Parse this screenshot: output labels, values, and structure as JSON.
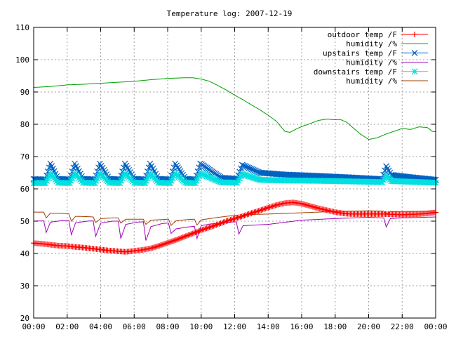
{
  "chart_data": {
    "type": "line",
    "title": "Temperature log: 2007-12-19",
    "xlabel": "",
    "ylabel": "",
    "xlim": [
      0,
      24
    ],
    "ylim": [
      20,
      110
    ],
    "x_ticks": [
      {
        "value": 0,
        "label": "00:00"
      },
      {
        "value": 2,
        "label": "02:00"
      },
      {
        "value": 4,
        "label": "04:00"
      },
      {
        "value": 6,
        "label": "06:00"
      },
      {
        "value": 8,
        "label": "08:00"
      },
      {
        "value": 10,
        "label": "10:00"
      },
      {
        "value": 12,
        "label": "12:00"
      },
      {
        "value": 14,
        "label": "14:00"
      },
      {
        "value": 16,
        "label": "16:00"
      },
      {
        "value": 18,
        "label": "18:00"
      },
      {
        "value": 20,
        "label": "20:00"
      },
      {
        "value": 22,
        "label": "22:00"
      },
      {
        "value": 24,
        "label": "00:00"
      }
    ],
    "y_ticks": [
      20,
      30,
      40,
      50,
      60,
      70,
      80,
      90,
      100,
      110
    ],
    "grid": true,
    "legend": "top-right",
    "series": [
      {
        "name": "outdoor temp /F",
        "color": "#ff0000",
        "marker": "plus",
        "x": [
          0,
          0.5,
          1,
          1.5,
          2,
          2.5,
          3,
          3.5,
          4,
          4.5,
          5,
          5.5,
          6,
          6.5,
          7,
          7.5,
          8,
          8.5,
          9,
          9.5,
          10,
          10.5,
          11,
          11.5,
          12,
          12.5,
          13,
          13.5,
          14,
          14.5,
          15,
          15.5,
          16,
          16.5,
          17,
          17.5,
          18,
          18.5,
          19,
          19.5,
          20,
          20.5,
          21,
          21.5,
          22,
          22.5,
          23,
          23.5,
          24
        ],
        "y": [
          43.2,
          43.0,
          42.7,
          42.4,
          42.3,
          42.0,
          41.8,
          41.5,
          41.2,
          40.9,
          40.7,
          40.5,
          40.8,
          41.1,
          41.6,
          42.4,
          43.3,
          44.2,
          45.2,
          46.2,
          47.2,
          48.1,
          49.0,
          50.0,
          50.8,
          51.6,
          52.5,
          53.3,
          54.2,
          55.0,
          55.6,
          55.8,
          55.4,
          54.7,
          54.0,
          53.4,
          52.8,
          52.4,
          52.2,
          52.2,
          52.2,
          52.2,
          52.2,
          52.1,
          52.0,
          52.1,
          52.2,
          52.4,
          52.7
        ]
      },
      {
        "name": "humidity /%",
        "color": "#00a000",
        "marker": "none",
        "x": [
          0,
          1,
          2,
          3,
          4,
          5,
          6,
          7,
          8,
          9,
          9.5,
          10,
          10.5,
          11,
          11.5,
          12,
          12.5,
          13,
          13.5,
          14,
          14.5,
          14.8,
          15,
          15.3,
          15.7,
          16,
          16.5,
          17,
          17.5,
          18,
          18.3,
          18.7,
          19,
          19.5,
          20,
          20.5,
          21,
          21.5,
          22,
          22.5,
          23,
          23.5,
          23.8,
          24
        ],
        "y": [
          91.4,
          91.7,
          92.2,
          92.4,
          92.7,
          93.0,
          93.3,
          93.8,
          94.2,
          94.4,
          94.4,
          94.0,
          93.3,
          92.0,
          90.6,
          89.0,
          87.6,
          86.0,
          84.5,
          82.8,
          80.9,
          79.0,
          77.8,
          77.5,
          78.6,
          79.3,
          80.2,
          81.2,
          81.6,
          81.4,
          81.5,
          80.6,
          79.2,
          77.0,
          75.3,
          75.8,
          76.9,
          77.8,
          78.7,
          78.4,
          79.2,
          79.0,
          77.8,
          77.7
        ]
      },
      {
        "name": "upstairs temp /F",
        "color": "#0060c0",
        "marker": "cross",
        "x": [
          0,
          0.7,
          1.0,
          1.45,
          2.15,
          2.45,
          2.95,
          3.65,
          3.95,
          4.5,
          5.15,
          5.45,
          6.0,
          6.65,
          6.95,
          7.45,
          8.15,
          8.45,
          9.05,
          9.65,
          9.95,
          11.2,
          12.15,
          12.45,
          13.5,
          15,
          17,
          19,
          20.8,
          21.05,
          21.35,
          22.5,
          24
        ],
        "y": [
          63.0,
          62.9,
          67.8,
          63.1,
          62.9,
          67.8,
          63.1,
          62.9,
          67.8,
          63.1,
          62.9,
          67.8,
          63.1,
          62.9,
          67.8,
          63.1,
          62.9,
          67.8,
          63.1,
          62.9,
          67.8,
          63.4,
          63.1,
          67.4,
          65.0,
          64.4,
          64.0,
          63.5,
          63.0,
          67.0,
          64.3,
          63.6,
          62.8
        ]
      },
      {
        "name": "humidity /%",
        "color": "#a000c0",
        "marker": "none",
        "x": [
          0,
          0.6,
          0.75,
          1.0,
          1.6,
          2.1,
          2.25,
          2.5,
          3.2,
          3.55,
          3.7,
          4.0,
          4.7,
          5.05,
          5.2,
          5.5,
          6.2,
          6.55,
          6.7,
          7.0,
          7.7,
          8.05,
          8.2,
          8.5,
          9.2,
          9.6,
          9.75,
          10.0,
          10.5,
          11.5,
          12.1,
          12.25,
          12.5,
          14,
          16,
          18,
          20,
          20.9,
          21.05,
          21.3,
          22,
          24
        ],
        "y": [
          50.0,
          50.1,
          46.5,
          49.7,
          50.1,
          50.2,
          45.8,
          49.5,
          50.0,
          50.1,
          45.3,
          49.4,
          50.0,
          50.0,
          44.6,
          49.0,
          49.7,
          49.8,
          44.0,
          48.3,
          49.3,
          49.4,
          46.2,
          47.6,
          48.2,
          48.4,
          44.6,
          48.6,
          49.1,
          49.6,
          49.8,
          46.0,
          48.6,
          49.0,
          50.3,
          50.8,
          51.2,
          51.0,
          48.2,
          50.8,
          51.0,
          51.3
        ]
      },
      {
        "name": "downstairs temp /F",
        "color": "#00e0e0",
        "marker": "star",
        "x": [
          0,
          0.7,
          1.0,
          1.45,
          2.15,
          2.45,
          2.95,
          3.65,
          3.95,
          4.5,
          5.15,
          5.45,
          6.0,
          6.65,
          6.95,
          7.45,
          8.15,
          8.45,
          9.05,
          9.65,
          9.95,
          11.2,
          12.15,
          12.45,
          13.5,
          15,
          17,
          19,
          20.8,
          21.05,
          21.35,
          22.5,
          24
        ],
        "y": [
          61.8,
          61.8,
          64.8,
          61.9,
          61.8,
          64.8,
          61.9,
          61.8,
          64.8,
          61.9,
          61.8,
          64.8,
          61.9,
          61.8,
          64.8,
          61.9,
          61.8,
          64.8,
          61.9,
          61.8,
          64.8,
          62.0,
          61.9,
          64.6,
          62.8,
          62.6,
          62.5,
          62.3,
          62.1,
          64.2,
          62.4,
          62.2,
          61.9
        ]
      },
      {
        "name": "humidity /%",
        "color": "#a04000",
        "marker": "none",
        "x": [
          0,
          0.6,
          0.75,
          1.0,
          1.6,
          2.1,
          2.25,
          2.5,
          3.2,
          3.55,
          3.7,
          4.0,
          4.7,
          5.05,
          5.2,
          5.5,
          6.2,
          6.55,
          6.7,
          7.0,
          7.7,
          8.05,
          8.2,
          8.5,
          9.2,
          9.6,
          9.75,
          10.0,
          10.5,
          11.5,
          12.1,
          12.25,
          12.5,
          14,
          16,
          18,
          20,
          20.9,
          21.05,
          21.3,
          22,
          24
        ],
        "y": [
          52.8,
          52.8,
          51.0,
          52.5,
          52.4,
          52.3,
          50.0,
          51.5,
          51.4,
          51.3,
          49.6,
          50.8,
          51.0,
          51.0,
          49.4,
          50.6,
          50.6,
          50.6,
          49.0,
          50.3,
          50.5,
          50.6,
          48.7,
          50.1,
          50.5,
          50.6,
          48.8,
          50.4,
          50.8,
          51.5,
          51.8,
          50.8,
          52.0,
          52.2,
          52.6,
          53.0,
          53.2,
          53.1,
          52.2,
          53.0,
          53.0,
          53.1
        ]
      }
    ]
  }
}
